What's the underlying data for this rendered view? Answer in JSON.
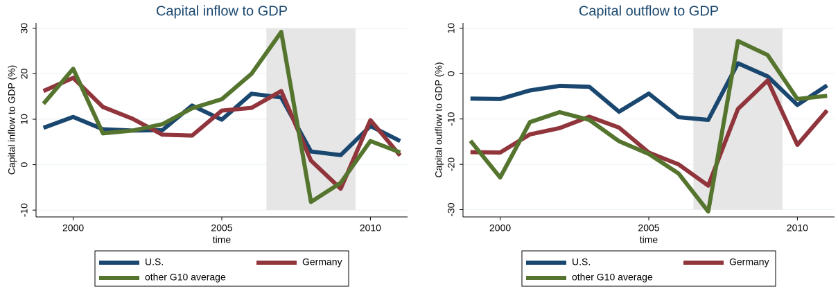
{
  "chart_data": [
    {
      "type": "line",
      "title": "Capital inflow to GDP",
      "x_label": "time",
      "y_label": "Capital inflow to GDP (%)",
      "x": [
        1999,
        2000,
        2001,
        2002,
        2003,
        2004,
        2005,
        2006,
        2007,
        2008,
        2009,
        2010,
        2011
      ],
      "xlim": [
        1998.75,
        2011.25
      ],
      "xticks": [
        2000,
        2005,
        2010
      ],
      "ylim": [
        -11.5,
        31.2
      ],
      "yticks": [
        -10,
        0,
        10,
        20,
        30
      ],
      "grid": true,
      "shade": [
        2006.5,
        2009.5
      ],
      "series": [
        {
          "name": "U.S.",
          "color": "#1a476f",
          "values": [
            8.1,
            10.5,
            7.8,
            7.5,
            7.6,
            13,
            9.9,
            15.6,
            14.8,
            2.9,
            2.1,
            8.5,
            5.2
          ]
        },
        {
          "name": "Germany",
          "color": "#90353b",
          "values": [
            16.2,
            19.1,
            12.7,
            10.1,
            6.6,
            6.4,
            11.9,
            12.5,
            16.2,
            0.9,
            -5.3,
            9.8,
            2.0
          ]
        },
        {
          "name": "other G10 average",
          "color": "#55752f",
          "values": [
            13.4,
            21.1,
            6.9,
            7.5,
            8.9,
            12.4,
            14.4,
            20,
            29.2,
            -8.2,
            -4.0,
            5.2,
            2.7
          ]
        }
      ]
    },
    {
      "type": "line",
      "title": "Capital outflow to GDP",
      "x_label": "time",
      "y_label": "Capital outflow to GDP (%)",
      "x": [
        1999,
        2000,
        2001,
        2002,
        2003,
        2004,
        2005,
        2006,
        2007,
        2008,
        2009,
        2010,
        2011
      ],
      "xlim": [
        1998.75,
        2011.25
      ],
      "xticks": [
        2000,
        2005,
        2010
      ],
      "ylim": [
        -31.6,
        11.2
      ],
      "yticks": [
        -30,
        -20,
        -10,
        0,
        10
      ],
      "grid": true,
      "shade": [
        2006.5,
        2009.5
      ],
      "series": [
        {
          "name": "U.S.",
          "color": "#1a476f",
          "values": [
            -5.5,
            -5.6,
            -3.7,
            -2.7,
            -2.9,
            -8.4,
            -4.4,
            -9.6,
            -10.2,
            2.3,
            -0.6,
            -6.9,
            -2.6
          ]
        },
        {
          "name": "Germany",
          "color": "#90353b",
          "values": [
            -17.3,
            -17.4,
            -13.4,
            -12.0,
            -9.5,
            -11.9,
            -17.4,
            -20,
            -24.7,
            -7.8,
            -1.5,
            -15.7,
            -8.1
          ]
        },
        {
          "name": "other G10 average",
          "color": "#55752f",
          "values": [
            -14.8,
            -22.9,
            -10.7,
            -8.5,
            -10.2,
            -14.9,
            -17.7,
            -22,
            -30.4,
            7.2,
            4.1,
            -5.6,
            -4.9
          ]
        }
      ]
    }
  ]
}
